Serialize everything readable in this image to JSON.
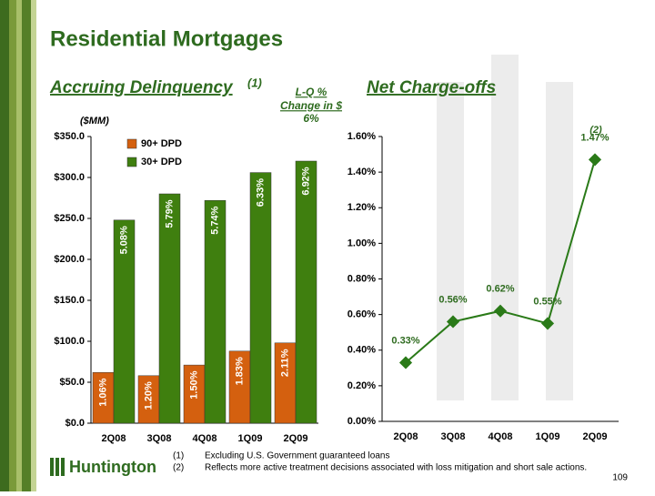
{
  "title": "Residential Mortgages",
  "logo": "Huntington",
  "page_number": "109",
  "footnotes": [
    {
      "marker": "(1)",
      "text": "Excluding U.S. Government guaranteed loans"
    },
    {
      "marker": "(2)",
      "text": "Reflects more active treatment decisions associated with loss mitigation and short sale actions."
    }
  ],
  "chart_data": [
    {
      "type": "bar",
      "title": "Accruing Delinquency",
      "title_note": "(1)",
      "unit_label": "($MM)",
      "annotation": [
        "L-Q %",
        "Change in $",
        "6%"
      ],
      "categories": [
        "2Q08",
        "3Q08",
        "4Q08",
        "1Q09",
        "2Q09"
      ],
      "series": [
        {
          "name": "90+ DPD",
          "color": "#d4600f",
          "values": [
            62,
            58,
            71,
            88,
            98
          ],
          "rate_labels": [
            "1.06%",
            "1.20%",
            "1.50%",
            "1.83%",
            "2.11%"
          ]
        },
        {
          "name": "30+ DPD",
          "color": "#3f7f0f",
          "values": [
            248,
            280,
            272,
            306,
            320
          ],
          "rate_labels": [
            "5.08%",
            "5.79%",
            "5.74%",
            "6.33%",
            "6.92%"
          ]
        }
      ],
      "ylim": [
        0,
        350
      ],
      "yticks": [
        {
          "value": 0,
          "label": "$0.0"
        },
        {
          "value": 50,
          "label": "$50.0"
        },
        {
          "value": 100,
          "label": "$100.0"
        },
        {
          "value": 150,
          "label": "$150.0"
        },
        {
          "value": 200,
          "label": "$200.0"
        },
        {
          "value": 250,
          "label": "$250.0"
        },
        {
          "value": 300,
          "label": "$300.0"
        },
        {
          "value": 350,
          "label": "$350.0"
        }
      ],
      "legend": "top-left"
    },
    {
      "type": "line",
      "title": "Net Charge-offs",
      "annotation": "(2)",
      "categories": [
        "2Q08",
        "3Q08",
        "4Q08",
        "1Q09",
        "2Q09"
      ],
      "series": [
        {
          "name": "Net Charge-offs",
          "color": "#2a7a18",
          "values": [
            0.33,
            0.56,
            0.62,
            0.55,
            1.47
          ],
          "value_labels": [
            "0.33%",
            "0.56%",
            "0.62%",
            "0.55%",
            "1.47%"
          ]
        }
      ],
      "ylim": [
        0,
        1.6
      ],
      "yticks": [
        {
          "value": 0,
          "label": "0.00%"
        },
        {
          "value": 0.2,
          "label": "0.20%"
        },
        {
          "value": 0.4,
          "label": "0.40%"
        },
        {
          "value": 0.6,
          "label": "0.60%"
        },
        {
          "value": 0.8,
          "label": "0.80%"
        },
        {
          "value": 1.0,
          "label": "1.00%"
        },
        {
          "value": 1.2,
          "label": "1.20%"
        },
        {
          "value": 1.4,
          "label": "1.40%"
        },
        {
          "value": 1.6,
          "label": "1.60%"
        }
      ]
    }
  ]
}
